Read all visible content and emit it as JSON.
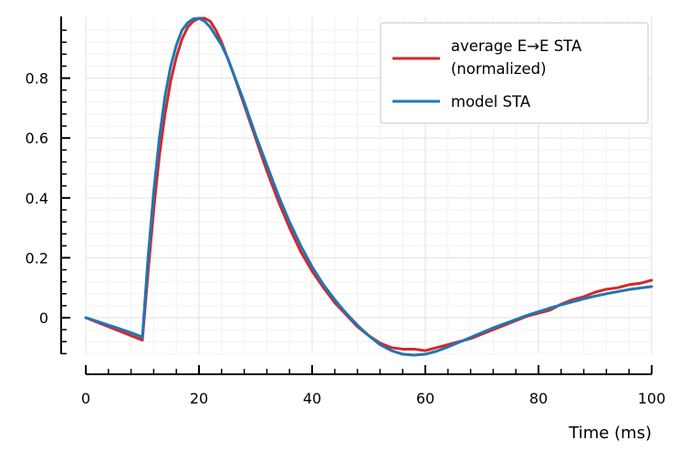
{
  "chart_data": {
    "type": "line",
    "title": "",
    "xlabel": "Time (ms)",
    "ylabel": "",
    "xlim": [
      0,
      100
    ],
    "ylim": [
      -0.12,
      1.0
    ],
    "x_ticks": [
      0,
      20,
      40,
      60,
      80,
      100
    ],
    "x_tick_labels": [
      "0",
      "20",
      "40",
      "60",
      "80",
      "100"
    ],
    "y_ticks": [
      0,
      0.2,
      0.4,
      0.6,
      0.8
    ],
    "y_tick_labels": [
      "0",
      "0.2",
      "0.4",
      "0.6",
      "0.8"
    ],
    "grid": true,
    "legend_position": "top-right",
    "series": [
      {
        "name": "average E→E STA\n(normalized)",
        "legend_lines": [
          "average E→E STA",
          "(normalized)"
        ],
        "color": "#d62728",
        "x": [
          0,
          2,
          4,
          6,
          8,
          10,
          11,
          12,
          13,
          14,
          15,
          16,
          17,
          18,
          19,
          20,
          21,
          22,
          23,
          24,
          25,
          26,
          28,
          30,
          32,
          34,
          36,
          38,
          40,
          42,
          44,
          46,
          48,
          50,
          52,
          54,
          56,
          58,
          60,
          62,
          64,
          66,
          68,
          70,
          72,
          74,
          76,
          78,
          80,
          82,
          84,
          86,
          88,
          90,
          92,
          94,
          96,
          98,
          100
        ],
        "y": [
          0,
          -0.015,
          -0.03,
          -0.045,
          -0.06,
          -0.075,
          0.15,
          0.36,
          0.54,
          0.68,
          0.79,
          0.87,
          0.93,
          0.97,
          0.99,
          1.0,
          1.0,
          0.99,
          0.96,
          0.92,
          0.87,
          0.82,
          0.71,
          0.6,
          0.49,
          0.39,
          0.3,
          0.22,
          0.155,
          0.1,
          0.05,
          0.01,
          -0.03,
          -0.06,
          -0.085,
          -0.1,
          -0.105,
          -0.105,
          -0.11,
          -0.1,
          -0.09,
          -0.08,
          -0.07,
          -0.055,
          -0.04,
          -0.025,
          -0.01,
          0.005,
          0.015,
          0.025,
          0.045,
          0.06,
          0.07,
          0.085,
          0.095,
          0.1,
          0.11,
          0.115,
          0.125
        ]
      },
      {
        "name": "model STA",
        "legend_lines": [
          "model STA"
        ],
        "color": "#1f77b4",
        "x": [
          0,
          2,
          4,
          6,
          8,
          10,
          11,
          12,
          13,
          14,
          15,
          16,
          17,
          18,
          19,
          20,
          21,
          22,
          23,
          24,
          25,
          26,
          28,
          30,
          32,
          34,
          36,
          38,
          40,
          42,
          44,
          46,
          48,
          50,
          52,
          54,
          56,
          58,
          60,
          62,
          64,
          66,
          68,
          70,
          72,
          74,
          76,
          78,
          80,
          82,
          84,
          86,
          88,
          90,
          92,
          94,
          96,
          98,
          100
        ],
        "y": [
          0,
          -0.012,
          -0.025,
          -0.037,
          -0.05,
          -0.065,
          0.2,
          0.42,
          0.6,
          0.74,
          0.84,
          0.91,
          0.96,
          0.985,
          0.998,
          1.0,
          0.99,
          0.97,
          0.94,
          0.91,
          0.87,
          0.82,
          0.72,
          0.61,
          0.51,
          0.41,
          0.32,
          0.24,
          0.17,
          0.11,
          0.06,
          0.015,
          -0.025,
          -0.06,
          -0.09,
          -0.11,
          -0.122,
          -0.125,
          -0.122,
          -0.112,
          -0.098,
          -0.082,
          -0.066,
          -0.05,
          -0.034,
          -0.02,
          -0.006,
          0.008,
          0.02,
          0.032,
          0.043,
          0.053,
          0.063,
          0.072,
          0.08,
          0.087,
          0.094,
          0.099,
          0.104
        ]
      }
    ]
  }
}
